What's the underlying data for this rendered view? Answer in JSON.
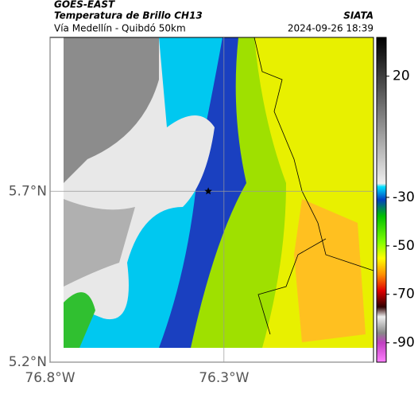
{
  "header": {
    "product": "GOES-EAST",
    "title": "Temperatura de Brillo CH13",
    "subtitle": "Vía Medellín - Quibdó 50km",
    "source": "SIATA",
    "timestamp": "2024-09-26 18:39"
  },
  "map": {
    "xlim": [
      -76.8,
      -75.87
    ],
    "ylim": [
      5.2,
      6.15
    ],
    "xticks": [
      {
        "value": -76.8,
        "label": "76.8°W"
      },
      {
        "value": -76.3,
        "label": "76.3°W"
      }
    ],
    "yticks": [
      {
        "value": 5.7,
        "label": "5.7°N"
      },
      {
        "value": 5.2,
        "label": "5.2°N"
      }
    ],
    "grid": true,
    "marker": {
      "lon": -76.345,
      "lat": 5.7
    }
  },
  "colorbar": {
    "lim": [
      36,
      -98
    ],
    "ticks": [
      20,
      -30,
      -50,
      -70,
      -90
    ]
  }
}
